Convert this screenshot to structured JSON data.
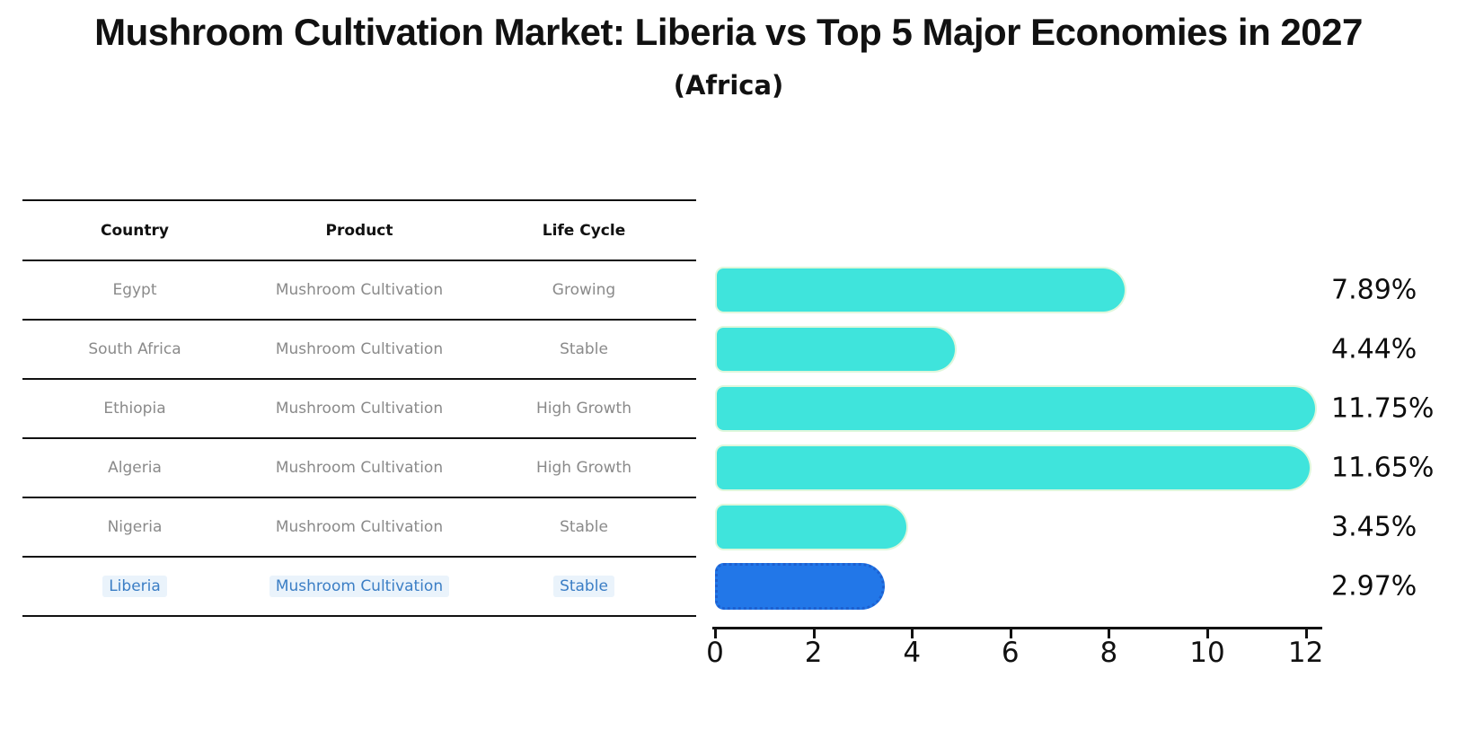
{
  "title": "Mushroom Cultivation Market: Liberia vs Top 5 Major Economies in 2027",
  "subtitle": "(Africa)",
  "colors": {
    "bar": "#3fe4dc",
    "highlight_bar": "#2277e8",
    "highlight_border": "#1d60d0",
    "table_text": "#8a8a8a",
    "highlight_text": "#3b7ec5",
    "axis_text": "#111111"
  },
  "table": {
    "headers": [
      "Country",
      "Product",
      "Life Cycle"
    ],
    "rows": [
      {
        "country": "Egypt",
        "product": "Mushroom Cultivation",
        "life_cycle": "Growing",
        "highlight": false
      },
      {
        "country": "South Africa",
        "product": "Mushroom Cultivation",
        "life_cycle": "Stable",
        "highlight": false
      },
      {
        "country": "Ethiopia",
        "product": "Mushroom Cultivation",
        "life_cycle": "High Growth",
        "highlight": false
      },
      {
        "country": "Algeria",
        "product": "Mushroom Cultivation",
        "life_cycle": "High Growth",
        "highlight": false
      },
      {
        "country": "Nigeria",
        "product": "Mushroom Cultivation",
        "life_cycle": "Stable",
        "highlight": false
      },
      {
        "country": "Liberia",
        "product": "Mushroom Cultivation",
        "life_cycle": "Stable",
        "highlight": true
      }
    ]
  },
  "chart_data": {
    "type": "bar",
    "orientation": "horizontal",
    "title": "Mushroom Cultivation Market: Liberia vs Top 5 Major Economies in 2027",
    "subtitle": "(Africa)",
    "categories": [
      "Egypt",
      "South Africa",
      "Ethiopia",
      "Algeria",
      "Nigeria",
      "Liberia"
    ],
    "values": [
      7.89,
      4.44,
      11.75,
      11.65,
      3.45,
      2.97
    ],
    "value_labels": [
      "7.89%",
      "4.44%",
      "11.75%",
      "11.65%",
      "3.45%",
      "2.97%"
    ],
    "highlight_category": "Liberia",
    "xlabel": "",
    "ylabel": "",
    "xlim": [
      0,
      12
    ],
    "x_ticks": [
      0,
      2,
      4,
      6,
      8,
      10,
      12
    ],
    "grid": false,
    "legend": false
  }
}
